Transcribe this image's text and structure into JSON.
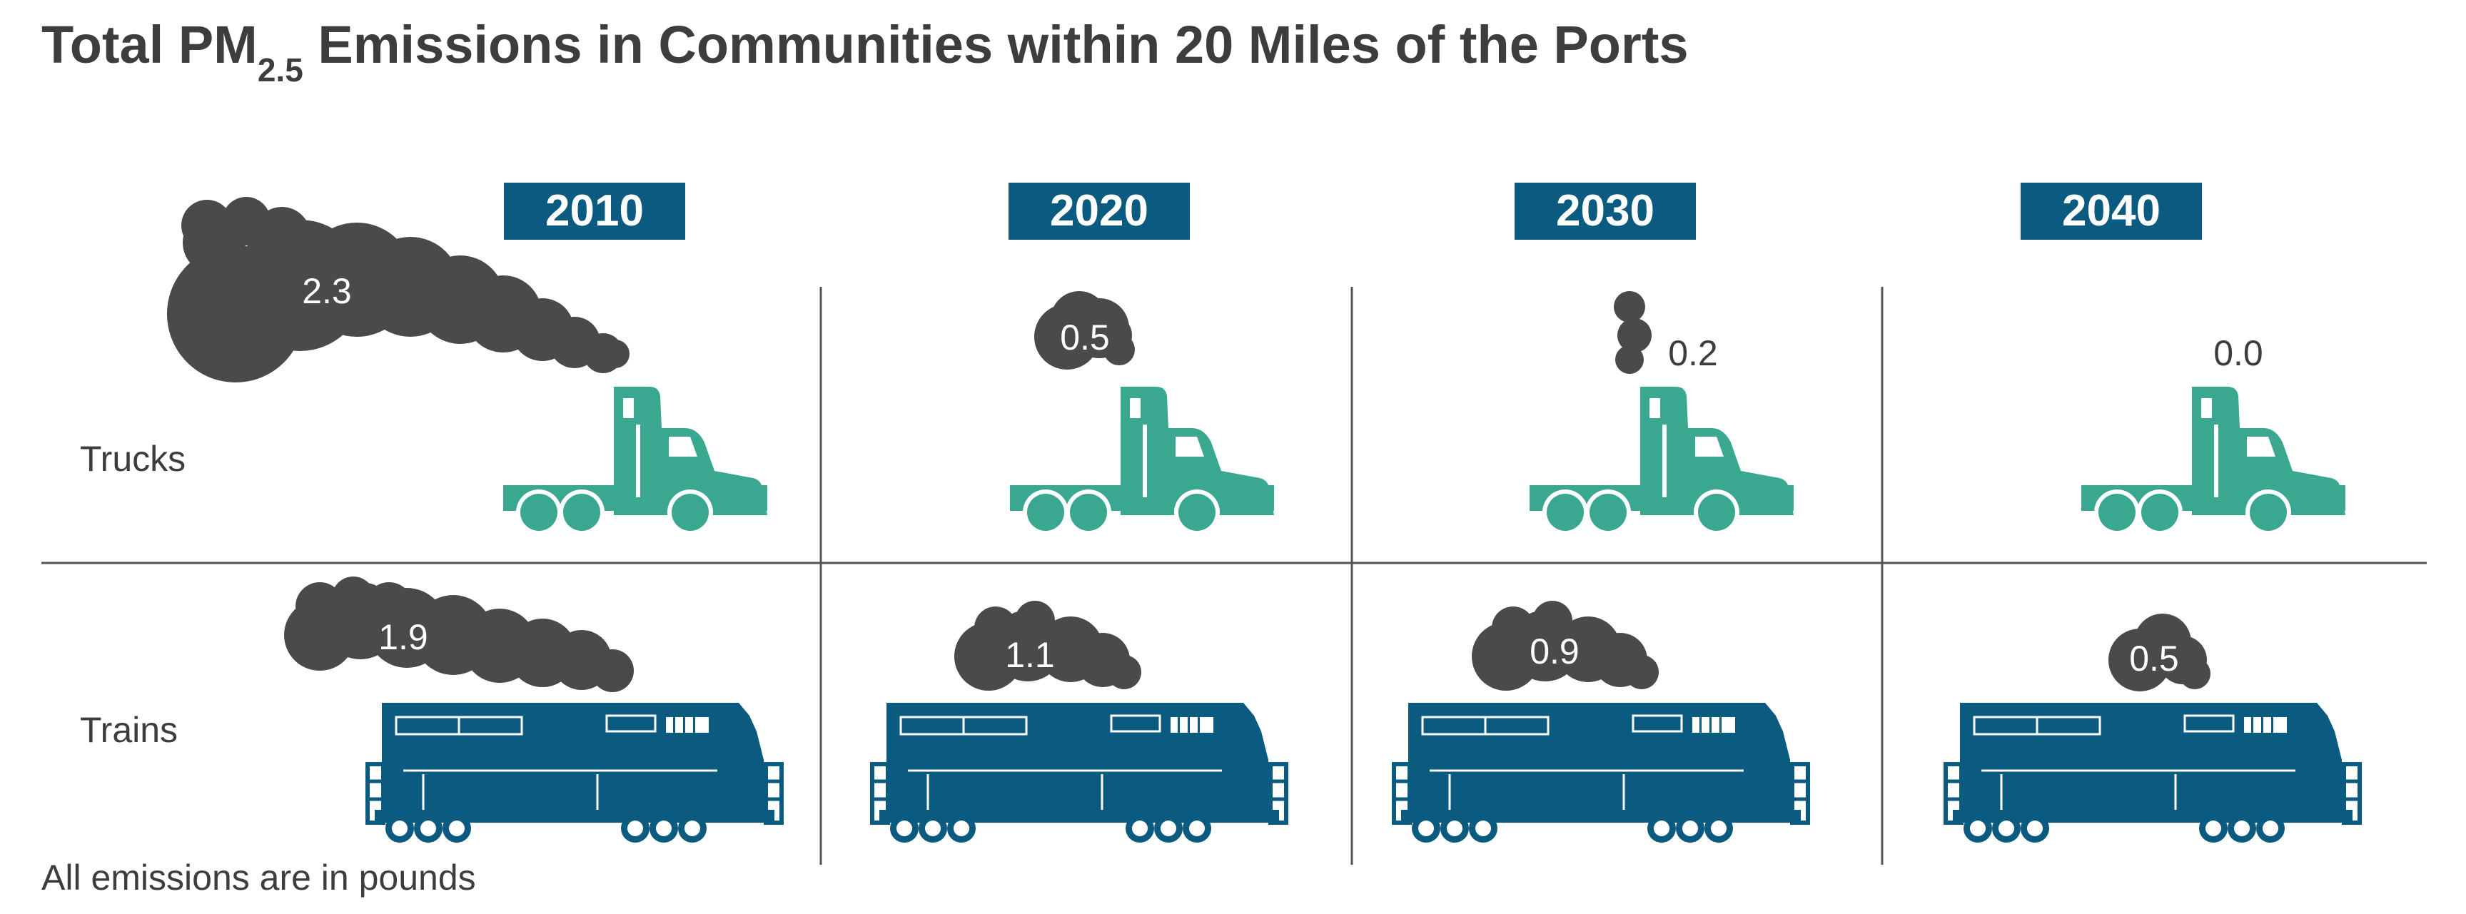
{
  "title": {
    "prefix": "Total PM",
    "subscript": "2.5",
    "suffix": " Emissions in Communities within 20 Miles of the Ports"
  },
  "footnote": "All emissions are in pounds",
  "colors": {
    "title": "#3d3d3d",
    "smoke": "#4a4a4c",
    "truck": "#3aa891",
    "train": "#0b5a80",
    "year_badge": "#0b5a80",
    "grid": "#555555"
  },
  "chart_data": {
    "type": "pictorial",
    "title": "Total PM2.5 Emissions in Communities within 20 Miles of the Ports",
    "unit": "pounds",
    "categories": [
      "2010",
      "2020",
      "2030",
      "2040"
    ],
    "series": [
      {
        "name": "Trucks",
        "icon": "truck-icon",
        "values": [
          2.3,
          0.5,
          0.2,
          0.0
        ],
        "labels": [
          "2.3",
          "0.5",
          "0.2",
          "0.0"
        ]
      },
      {
        "name": "Trains",
        "icon": "train-icon",
        "values": [
          1.9,
          1.1,
          0.9,
          0.5
        ],
        "labels": [
          "1.9",
          "1.1",
          "0.9",
          "0.5"
        ]
      }
    ],
    "grid": true
  }
}
